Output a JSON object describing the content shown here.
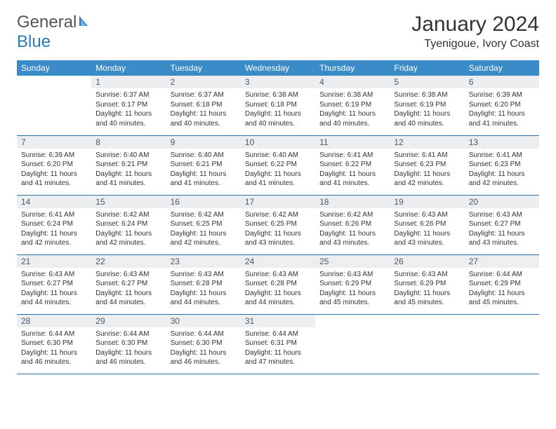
{
  "brand": {
    "part1": "General",
    "part2": "Blue"
  },
  "title": "January 2024",
  "location": "Tyenigoue, Ivory Coast",
  "colors": {
    "header_bg": "#3b8bc9",
    "header_text": "#ffffff",
    "daynum_bg": "#eceeef",
    "daynum_text": "#4a5a6a",
    "row_border": "#2a6fa8",
    "brand_blue": "#2a7ab8"
  },
  "weekdays": [
    "Sunday",
    "Monday",
    "Tuesday",
    "Wednesday",
    "Thursday",
    "Friday",
    "Saturday"
  ],
  "weeks": [
    [
      null,
      {
        "n": "1",
        "sr": "6:37 AM",
        "ss": "6:17 PM",
        "dl": "11 hours and 40 minutes."
      },
      {
        "n": "2",
        "sr": "6:37 AM",
        "ss": "6:18 PM",
        "dl": "11 hours and 40 minutes."
      },
      {
        "n": "3",
        "sr": "6:38 AM",
        "ss": "6:18 PM",
        "dl": "11 hours and 40 minutes."
      },
      {
        "n": "4",
        "sr": "6:38 AM",
        "ss": "6:19 PM",
        "dl": "11 hours and 40 minutes."
      },
      {
        "n": "5",
        "sr": "6:38 AM",
        "ss": "6:19 PM",
        "dl": "11 hours and 40 minutes."
      },
      {
        "n": "6",
        "sr": "6:39 AM",
        "ss": "6:20 PM",
        "dl": "11 hours and 41 minutes."
      }
    ],
    [
      {
        "n": "7",
        "sr": "6:39 AM",
        "ss": "6:20 PM",
        "dl": "11 hours and 41 minutes."
      },
      {
        "n": "8",
        "sr": "6:40 AM",
        "ss": "6:21 PM",
        "dl": "11 hours and 41 minutes."
      },
      {
        "n": "9",
        "sr": "6:40 AM",
        "ss": "6:21 PM",
        "dl": "11 hours and 41 minutes."
      },
      {
        "n": "10",
        "sr": "6:40 AM",
        "ss": "6:22 PM",
        "dl": "11 hours and 41 minutes."
      },
      {
        "n": "11",
        "sr": "6:41 AM",
        "ss": "6:22 PM",
        "dl": "11 hours and 41 minutes."
      },
      {
        "n": "12",
        "sr": "6:41 AM",
        "ss": "6:23 PM",
        "dl": "11 hours and 42 minutes."
      },
      {
        "n": "13",
        "sr": "6:41 AM",
        "ss": "6:23 PM",
        "dl": "11 hours and 42 minutes."
      }
    ],
    [
      {
        "n": "14",
        "sr": "6:41 AM",
        "ss": "6:24 PM",
        "dl": "11 hours and 42 minutes."
      },
      {
        "n": "15",
        "sr": "6:42 AM",
        "ss": "6:24 PM",
        "dl": "11 hours and 42 minutes."
      },
      {
        "n": "16",
        "sr": "6:42 AM",
        "ss": "6:25 PM",
        "dl": "11 hours and 42 minutes."
      },
      {
        "n": "17",
        "sr": "6:42 AM",
        "ss": "6:25 PM",
        "dl": "11 hours and 43 minutes."
      },
      {
        "n": "18",
        "sr": "6:42 AM",
        "ss": "6:26 PM",
        "dl": "11 hours and 43 minutes."
      },
      {
        "n": "19",
        "sr": "6:43 AM",
        "ss": "6:26 PM",
        "dl": "11 hours and 43 minutes."
      },
      {
        "n": "20",
        "sr": "6:43 AM",
        "ss": "6:27 PM",
        "dl": "11 hours and 43 minutes."
      }
    ],
    [
      {
        "n": "21",
        "sr": "6:43 AM",
        "ss": "6:27 PM",
        "dl": "11 hours and 44 minutes."
      },
      {
        "n": "22",
        "sr": "6:43 AM",
        "ss": "6:27 PM",
        "dl": "11 hours and 44 minutes."
      },
      {
        "n": "23",
        "sr": "6:43 AM",
        "ss": "6:28 PM",
        "dl": "11 hours and 44 minutes."
      },
      {
        "n": "24",
        "sr": "6:43 AM",
        "ss": "6:28 PM",
        "dl": "11 hours and 44 minutes."
      },
      {
        "n": "25",
        "sr": "6:43 AM",
        "ss": "6:29 PM",
        "dl": "11 hours and 45 minutes."
      },
      {
        "n": "26",
        "sr": "6:43 AM",
        "ss": "6:29 PM",
        "dl": "11 hours and 45 minutes."
      },
      {
        "n": "27",
        "sr": "6:44 AM",
        "ss": "6:29 PM",
        "dl": "11 hours and 45 minutes."
      }
    ],
    [
      {
        "n": "28",
        "sr": "6:44 AM",
        "ss": "6:30 PM",
        "dl": "11 hours and 46 minutes."
      },
      {
        "n": "29",
        "sr": "6:44 AM",
        "ss": "6:30 PM",
        "dl": "11 hours and 46 minutes."
      },
      {
        "n": "30",
        "sr": "6:44 AM",
        "ss": "6:30 PM",
        "dl": "11 hours and 46 minutes."
      },
      {
        "n": "31",
        "sr": "6:44 AM",
        "ss": "6:31 PM",
        "dl": "11 hours and 47 minutes."
      },
      null,
      null,
      null
    ]
  ],
  "labels": {
    "sunrise": "Sunrise:",
    "sunset": "Sunset:",
    "daylight": "Daylight:"
  }
}
